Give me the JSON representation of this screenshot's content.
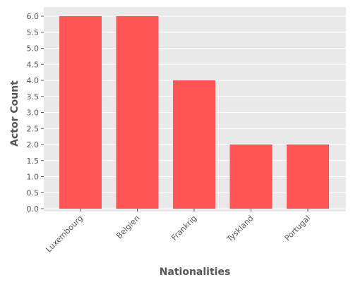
{
  "chart_data": {
    "type": "bar",
    "title": "",
    "xlabel": "Nationalities",
    "ylabel": "Actor Count",
    "categories": [
      "Luxembourg",
      "Belgien",
      "Frankrig",
      "Tyskland",
      "Portugal"
    ],
    "values": [
      6,
      6,
      4,
      2,
      2
    ],
    "ylim": [
      0,
      6
    ],
    "yticks": [
      "0.0",
      "0.5",
      "1.0",
      "1.5",
      "2.0",
      "2.5",
      "3.0",
      "3.5",
      "4.0",
      "4.5",
      "5.0",
      "5.5",
      "6.0"
    ],
    "grid": true,
    "legend": "none",
    "colors": {
      "bar": "#FF5555",
      "plot_background": "#E9E9E9",
      "grid": "#FFFFFF"
    }
  }
}
